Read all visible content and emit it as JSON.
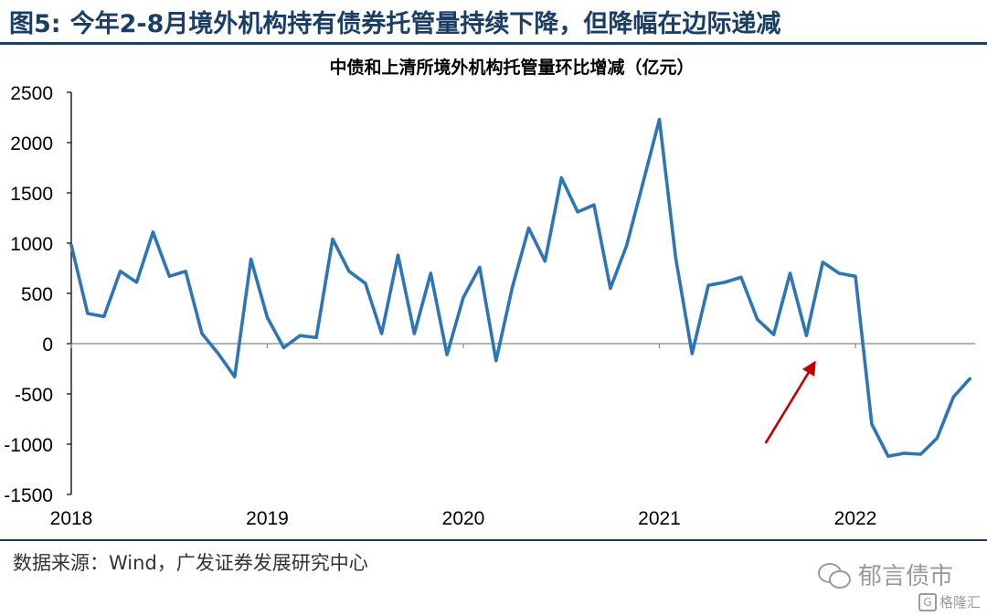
{
  "figure": {
    "number_label": "图5:",
    "title": "今年2-8月境外机构持有债券托管量持续下降，但降幅在边际递减",
    "source": "数据来源：Wind，广发证券发展研究中心",
    "watermark": "郁言债市",
    "watermark_icon": "wechat-icon",
    "corner_mark": "格隆汇",
    "corner_icon": "gelonghui-logo-icon",
    "rule_color": "#1a3e66"
  },
  "chart_data": {
    "type": "line",
    "title": "中债和上清所境外机构托管量环比增减（亿元）",
    "xlabel": "",
    "ylabel": "",
    "ylim": [
      -1500,
      2500
    ],
    "yticks": [
      2500,
      2000,
      1500,
      1000,
      500,
      0,
      -500,
      -1000,
      -1500
    ],
    "xticks": [
      "2018",
      "2019",
      "2020",
      "2021",
      "2022"
    ],
    "grid": false,
    "legend": "none",
    "line_color": "#2e75b6",
    "series": [
      {
        "values": [
          980,
          300,
          270,
          720,
          610,
          1110,
          670,
          720,
          100,
          -100,
          -330,
          840,
          260,
          -40,
          80,
          60,
          1040,
          720,
          600,
          100,
          880,
          100,
          700,
          -110,
          460,
          760,
          -170,
          560,
          1150,
          820,
          1650,
          1310,
          1380,
          550,
          980,
          1600,
          2230,
          850,
          -100,
          580,
          610,
          660,
          240,
          90,
          700,
          80,
          810,
          700,
          670,
          -800,
          -1120,
          -1090,
          -1100,
          -940,
          -530,
          -350
        ]
      }
    ],
    "annotation": {
      "type": "trend-arrow",
      "color": "#c00000",
      "from": {
        "x": 42.5,
        "y": -990
      },
      "to": {
        "x": 45.5,
        "y": -190
      }
    }
  }
}
